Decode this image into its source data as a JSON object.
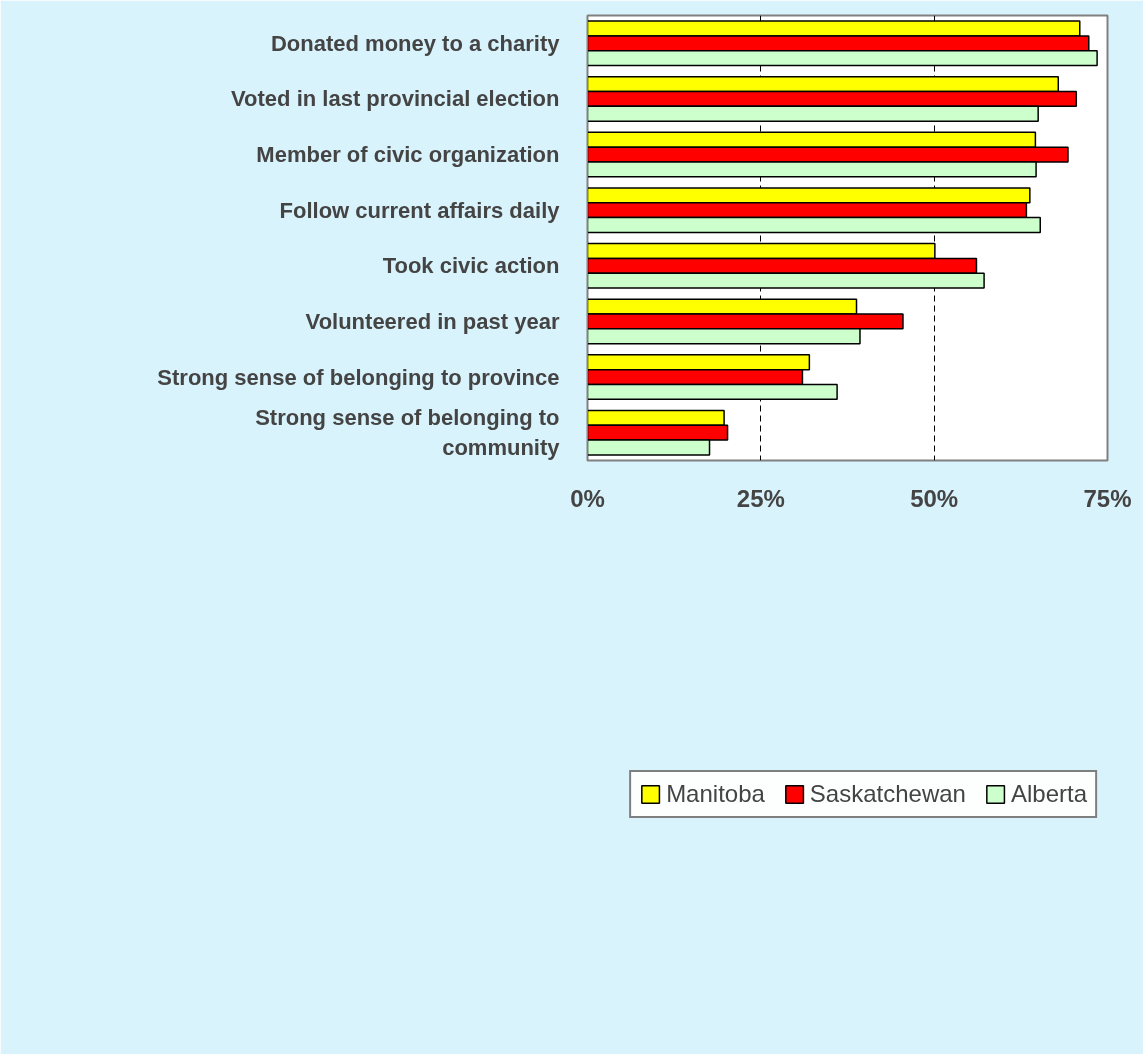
{
  "chart_data": {
    "type": "bar",
    "orientation": "horizontal",
    "categories": [
      "Donated money to a charity",
      "Voted in last provincial election",
      "Member of civic organization",
      "Follow current affairs daily",
      "Took civic action",
      "Volunteered in past year",
      "Strong sense of belonging to province",
      "Strong sense of belonging to community"
    ],
    "series": [
      {
        "name": "Manitoba",
        "color": "#ffff00",
        "values": [
          71.0,
          67.9,
          64.6,
          63.8,
          50.1,
          38.8,
          32.0,
          19.7
        ]
      },
      {
        "name": "Saskatchewan",
        "color": "#ff0000",
        "values": [
          72.3,
          70.5,
          69.3,
          63.3,
          56.1,
          45.5,
          31.0,
          20.2
        ]
      },
      {
        "name": "Alberta",
        "color": "#ccffcc",
        "values": [
          73.5,
          65.0,
          64.7,
          65.3,
          57.2,
          39.3,
          36.0,
          17.6
        ]
      }
    ],
    "xlim": [
      0,
      75
    ],
    "xticks": [
      {
        "value": 0,
        "label": "0%"
      },
      {
        "value": 25,
        "label": "25%"
      },
      {
        "value": 50,
        "label": "50%"
      },
      {
        "value": 75,
        "label": "75%"
      }
    ],
    "grid": "x",
    "legend": "bottom right"
  }
}
